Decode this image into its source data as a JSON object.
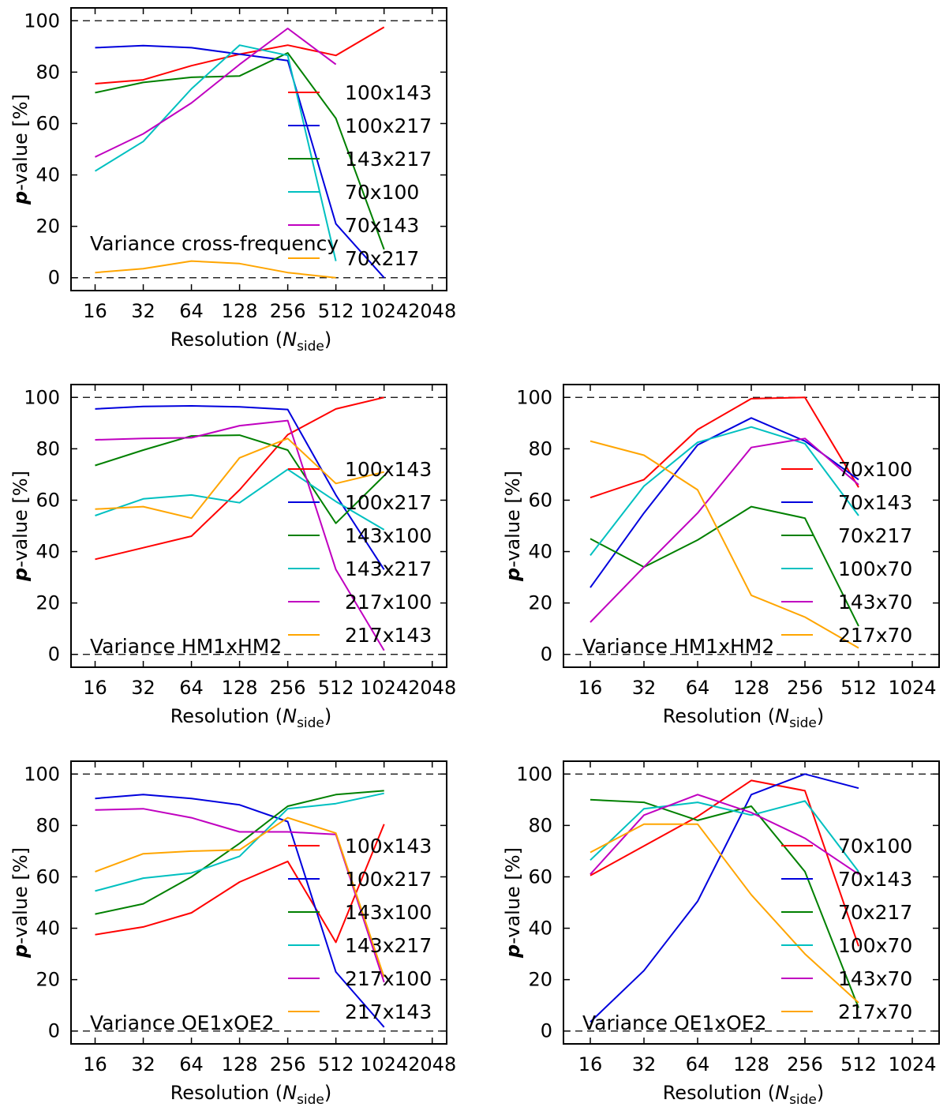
{
  "colors": {
    "red": "#ff0000",
    "blue": "#0000dd",
    "green": "#008000",
    "cyan": "#00c0c0",
    "magenta": "#c000c0",
    "orange": "#ffa500"
  },
  "chart_data": [
    {
      "type": "line",
      "title": "Variance cross-frequency",
      "xlabel": "Resolution",
      "xlabel_math": "N",
      "xlabel_sub": "side",
      "ylabel_prefix": "p",
      "ylabel_suffix": "-value [%]",
      "x_ticks": [
        "16",
        "32",
        "64",
        "128",
        "256",
        "512",
        "1024",
        "2048"
      ],
      "y_ticks": [
        "0",
        "20",
        "40",
        "60",
        "80",
        "100"
      ],
      "ylim": [
        -5,
        105
      ],
      "xlim_index": [
        -0.5,
        7.3
      ],
      "reference_lines": [
        0,
        100
      ],
      "series": [
        {
          "name": "100x143",
          "color": "red",
          "values": [
            75.5,
            77,
            82.5,
            87,
            90.5,
            86.5,
            97.5
          ]
        },
        {
          "name": "100x217",
          "color": "blue",
          "values": [
            89.5,
            90.3,
            89.5,
            87,
            84.5,
            21,
            0
          ]
        },
        {
          "name": "143x217",
          "color": "green",
          "values": [
            72,
            76,
            78,
            78.5,
            87.5,
            62,
            11
          ]
        },
        {
          "name": "70x100",
          "color": "cyan",
          "values": [
            41.5,
            53,
            73.5,
            90.5,
            86.5,
            6.5
          ]
        },
        {
          "name": "70x143",
          "color": "magenta",
          "values": [
            47,
            56,
            68,
            83,
            97,
            83
          ]
        },
        {
          "name": "70x217",
          "color": "orange",
          "values": [
            2,
            3.5,
            6.5,
            5.5,
            2,
            0
          ]
        }
      ]
    },
    {
      "type": "line",
      "title": "Variance HM1xHM2",
      "xlabel": "Resolution",
      "xlabel_math": "N",
      "xlabel_sub": "side",
      "ylabel_prefix": "p",
      "ylabel_suffix": "-value [%]",
      "x_ticks": [
        "16",
        "32",
        "64",
        "128",
        "256",
        "512",
        "1024",
        "2048"
      ],
      "y_ticks": [
        "0",
        "20",
        "40",
        "60",
        "80",
        "100"
      ],
      "ylim": [
        -5,
        105
      ],
      "xlim_index": [
        -0.5,
        7.3
      ],
      "reference_lines": [
        0,
        100
      ],
      "series": [
        {
          "name": "100x143",
          "color": "red",
          "values": [
            37,
            41.5,
            46,
            64,
            85.5,
            95.5,
            100
          ]
        },
        {
          "name": "100x217",
          "color": "blue",
          "values": [
            95.5,
            96.5,
            96.7,
            96.3,
            95.3,
            62,
            33
          ]
        },
        {
          "name": "143x100",
          "color": "green",
          "values": [
            73.5,
            79.5,
            85,
            85.3,
            79.5,
            51,
            69.5
          ]
        },
        {
          "name": "143x217",
          "color": "cyan",
          "values": [
            54,
            60.5,
            62,
            59,
            72,
            59.5,
            48.5
          ]
        },
        {
          "name": "217x100",
          "color": "magenta",
          "values": [
            83.5,
            84,
            84.3,
            89,
            91,
            33,
            1.5
          ]
        },
        {
          "name": "217x143",
          "color": "orange",
          "values": [
            56.5,
            57.5,
            53,
            76.5,
            84,
            66.5,
            71
          ]
        }
      ]
    },
    {
      "type": "line",
      "title": "Variance HM1xHM2",
      "xlabel": "Resolution",
      "xlabel_math": "N",
      "xlabel_sub": "side",
      "ylabel_prefix": "p",
      "ylabel_suffix": "-value [%]",
      "x_ticks": [
        "16",
        "32",
        "64",
        "128",
        "256",
        "512",
        "1024"
      ],
      "y_ticks": [
        "0",
        "20",
        "40",
        "60",
        "80",
        "100"
      ],
      "ylim": [
        -5,
        105
      ],
      "xlim_index": [
        -0.5,
        6.5
      ],
      "reference_lines": [
        0,
        100
      ],
      "series": [
        {
          "name": "70x100",
          "color": "red",
          "values": [
            61,
            68,
            87.5,
            99.5,
            100,
            65
          ]
        },
        {
          "name": "70x143",
          "color": "blue",
          "values": [
            26,
            55,
            81.5,
            92,
            83,
            68
          ]
        },
        {
          "name": "70x217",
          "color": "green",
          "values": [
            45,
            34,
            44.5,
            57.5,
            53,
            11
          ]
        },
        {
          "name": "100x70",
          "color": "cyan",
          "values": [
            38.5,
            65.5,
            82.5,
            88.5,
            82,
            54
          ]
        },
        {
          "name": "143x70",
          "color": "magenta",
          "values": [
            12.5,
            34,
            55,
            80.5,
            84,
            66
          ]
        },
        {
          "name": "217x70",
          "color": "orange",
          "values": [
            83,
            77.5,
            64,
            23,
            14.5,
            2.5
          ]
        }
      ]
    },
    {
      "type": "line",
      "title": "Variance OE1xOE2",
      "xlabel": "Resolution",
      "xlabel_math": "N",
      "xlabel_sub": "side",
      "ylabel_prefix": "p",
      "ylabel_suffix": "-value [%]",
      "x_ticks": [
        "16",
        "32",
        "64",
        "128",
        "256",
        "512",
        "1024",
        "2048"
      ],
      "y_ticks": [
        "0",
        "20",
        "40",
        "60",
        "80",
        "100"
      ],
      "ylim": [
        -5,
        105
      ],
      "xlim_index": [
        -0.5,
        7.3
      ],
      "reference_lines": [
        0,
        100
      ],
      "series": [
        {
          "name": "100x143",
          "color": "red",
          "values": [
            37.5,
            40.5,
            46,
            58,
            66,
            34.5,
            80.5
          ]
        },
        {
          "name": "100x217",
          "color": "blue",
          "values": [
            90.5,
            92,
            90.5,
            88,
            81.5,
            23,
            1.5
          ]
        },
        {
          "name": "143x100",
          "color": "green",
          "values": [
            45.5,
            49.5,
            60,
            73,
            87.5,
            92,
            93.5
          ]
        },
        {
          "name": "143x217",
          "color": "cyan",
          "values": [
            54.5,
            59.5,
            61.5,
            68,
            86.5,
            88.5,
            92.5
          ]
        },
        {
          "name": "217x100",
          "color": "magenta",
          "values": [
            86,
            86.5,
            83,
            77.5,
            77.5,
            76.5,
            19
          ]
        },
        {
          "name": "217x143",
          "color": "orange",
          "values": [
            62,
            69,
            70,
            70.5,
            83,
            77,
            21
          ]
        }
      ]
    },
    {
      "type": "line",
      "title": "Variance OE1xOE2",
      "xlabel": "Resolution",
      "xlabel_math": "N",
      "xlabel_sub": "side",
      "ylabel_prefix": "p",
      "ylabel_suffix": "-value [%]",
      "x_ticks": [
        "16",
        "32",
        "64",
        "128",
        "256",
        "512",
        "1024"
      ],
      "y_ticks": [
        "0",
        "20",
        "40",
        "60",
        "80",
        "100"
      ],
      "ylim": [
        -5,
        105
      ],
      "xlim_index": [
        -0.5,
        6.5
      ],
      "reference_lines": [
        0,
        100
      ],
      "series": [
        {
          "name": "70x100",
          "color": "red",
          "values": [
            60.5,
            72,
            83.5,
            97.5,
            93.5,
            33
          ]
        },
        {
          "name": "70x143",
          "color": "blue",
          "values": [
            3.5,
            23.5,
            50.5,
            92,
            100,
            94.5
          ]
        },
        {
          "name": "70x217",
          "color": "green",
          "values": [
            90,
            89,
            82,
            87.5,
            62,
            9
          ]
        },
        {
          "name": "100x70",
          "color": "cyan",
          "values": [
            66.5,
            86.5,
            89,
            84,
            89.5,
            62
          ]
        },
        {
          "name": "143x70",
          "color": "magenta",
          "values": [
            61,
            84,
            92,
            85,
            75,
            61
          ]
        },
        {
          "name": "217x70",
          "color": "orange",
          "values": [
            69.5,
            80.5,
            80.5,
            53,
            30,
            11
          ]
        }
      ]
    }
  ]
}
